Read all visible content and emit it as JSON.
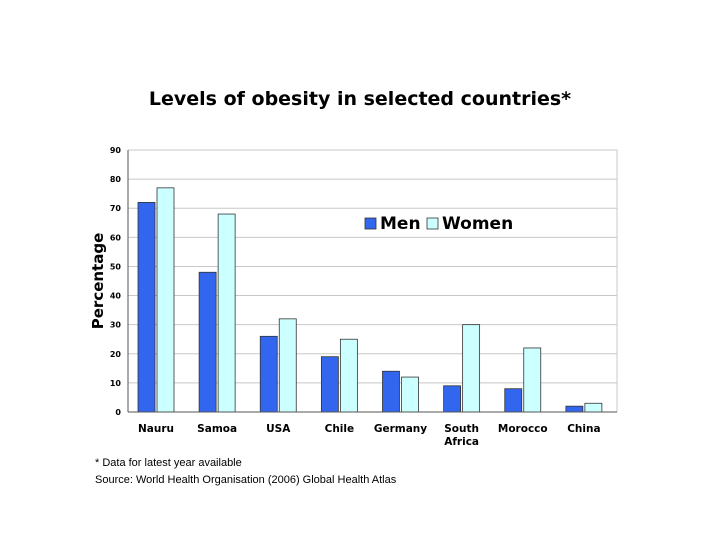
{
  "chart_data": {
    "type": "bar",
    "title": "Levels of obesity in selected countries*",
    "xlabel": "",
    "ylabel": "Percentage",
    "ylim": [
      0,
      90
    ],
    "yticks": [
      0,
      10,
      20,
      30,
      40,
      50,
      60,
      70,
      80,
      90
    ],
    "grid": true,
    "legend": "top-right",
    "categories": [
      "Nauru",
      "Samoa",
      "USA",
      "Chile",
      "Germany",
      "South Africa",
      "Morocco",
      "China"
    ],
    "series": [
      {
        "name": "Men",
        "color": "#3366ee",
        "values": [
          72,
          48,
          26,
          19,
          14,
          9,
          8,
          2
        ]
      },
      {
        "name": "Women",
        "color": "#ccffff",
        "values": [
          77,
          68,
          32,
          25,
          12,
          30,
          22,
          3
        ]
      }
    ]
  },
  "footnotes": {
    "note": "* Data for latest year available",
    "source": "Source: World Health Organisation (2006) Global Health Atlas"
  }
}
